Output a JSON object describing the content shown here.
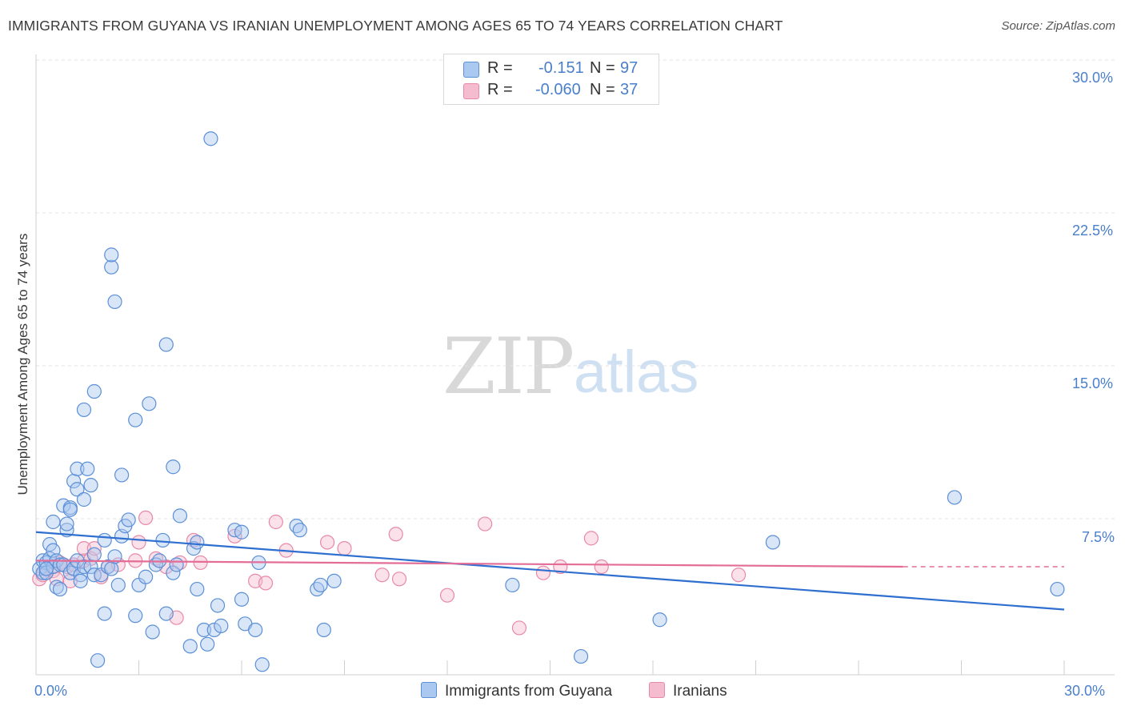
{
  "title": "IMMIGRANTS FROM GUYANA VS IRANIAN UNEMPLOYMENT AMONG AGES 65 TO 74 YEARS CORRELATION CHART",
  "source": "Source: ZipAtlas.com",
  "watermark": {
    "zip": "ZIP",
    "atlas": "atlas"
  },
  "colors": {
    "blue": "#5b8fd6",
    "blue_fill": "#aac8f0",
    "blue_line": "#2e6fcf",
    "pink": "#e889a8",
    "pink_fill": "#f5bcd0",
    "pink_line": "#e36d97",
    "grid": "#e3e3e3",
    "tick_text": "#4a7fcb"
  },
  "legend": {
    "series1": {
      "r_label": "R =",
      "r_value": "-0.151",
      "n_label": "N =",
      "n_value": "97"
    },
    "series2": {
      "r_label": "R =",
      "r_value": "-0.060",
      "n_label": "N =",
      "n_value": "37"
    }
  },
  "chart_data": {
    "type": "scatter",
    "title": "IMMIGRANTS FROM GUYANA VS IRANIAN UNEMPLOYMENT AMONG AGES 65 TO 74 YEARS CORRELATION CHART",
    "xlabel": "",
    "ylabel": "Unemployment Among Ages 65 to 74 years",
    "xlim": [
      0,
      30
    ],
    "ylim": [
      0,
      30
    ],
    "x_tick_labels": [
      "0.0%",
      "30.0%"
    ],
    "y_ticks": [
      7.5,
      15.0,
      22.5,
      30.0
    ],
    "y_tick_labels": [
      "7.5%",
      "15.0%",
      "22.5%",
      "30.0%"
    ],
    "grid": true,
    "series": [
      {
        "name": "Immigrants from Guyana",
        "R": -0.151,
        "N": 97,
        "trend": {
          "x": [
            0,
            30
          ],
          "y": [
            7.0,
            3.2
          ]
        },
        "points": [
          [
            0.1,
            5.2
          ],
          [
            0.2,
            5.6
          ],
          [
            0.2,
            5.0
          ],
          [
            0.3,
            5.5
          ],
          [
            0.3,
            5.0
          ],
          [
            0.4,
            5.7
          ],
          [
            0.4,
            6.4
          ],
          [
            0.5,
            5.3
          ],
          [
            0.5,
            6.1
          ],
          [
            0.5,
            7.5
          ],
          [
            0.6,
            4.3
          ],
          [
            0.6,
            5.6
          ],
          [
            0.7,
            5.4
          ],
          [
            0.7,
            4.2
          ],
          [
            0.8,
            5.4
          ],
          [
            0.8,
            8.3
          ],
          [
            0.9,
            7.1
          ],
          [
            0.9,
            7.4
          ],
          [
            1.0,
            8.2
          ],
          [
            1.0,
            8.1
          ],
          [
            1.0,
            5.0
          ],
          [
            1.1,
            9.5
          ],
          [
            1.1,
            5.2
          ],
          [
            1.2,
            5.6
          ],
          [
            1.2,
            10.1
          ],
          [
            1.2,
            9.1
          ],
          [
            1.3,
            4.9
          ],
          [
            1.3,
            4.6
          ],
          [
            1.4,
            5.3
          ],
          [
            1.4,
            8.6
          ],
          [
            1.4,
            13.0
          ],
          [
            1.5,
            10.1
          ],
          [
            1.6,
            9.3
          ],
          [
            1.6,
            5.3
          ],
          [
            1.7,
            13.9
          ],
          [
            1.7,
            4.9
          ],
          [
            1.7,
            5.9
          ],
          [
            1.8,
            0.7
          ],
          [
            1.9,
            4.9
          ],
          [
            2.0,
            3.0
          ],
          [
            2.0,
            6.6
          ],
          [
            2.1,
            5.3
          ],
          [
            2.2,
            20.0
          ],
          [
            2.2,
            20.6
          ],
          [
            2.2,
            5.2
          ],
          [
            2.3,
            18.3
          ],
          [
            2.3,
            5.8
          ],
          [
            2.4,
            4.4
          ],
          [
            2.5,
            9.8
          ],
          [
            2.5,
            6.8
          ],
          [
            2.6,
            7.3
          ],
          [
            2.7,
            7.6
          ],
          [
            2.9,
            12.5
          ],
          [
            2.9,
            2.9
          ],
          [
            3.0,
            4.4
          ],
          [
            3.2,
            4.8
          ],
          [
            3.3,
            13.3
          ],
          [
            3.4,
            2.1
          ],
          [
            3.5,
            5.4
          ],
          [
            3.6,
            5.6
          ],
          [
            3.7,
            6.6
          ],
          [
            3.8,
            16.2
          ],
          [
            3.8,
            3.0
          ],
          [
            4.0,
            10.2
          ],
          [
            4.0,
            5.0
          ],
          [
            4.1,
            5.4
          ],
          [
            4.2,
            7.8
          ],
          [
            4.5,
            1.4
          ],
          [
            4.6,
            6.2
          ],
          [
            4.7,
            6.5
          ],
          [
            4.7,
            4.2
          ],
          [
            4.9,
            2.2
          ],
          [
            5.0,
            1.5
          ],
          [
            5.1,
            26.3
          ],
          [
            5.2,
            2.2
          ],
          [
            5.3,
            3.4
          ],
          [
            5.4,
            2.4
          ],
          [
            5.8,
            7.1
          ],
          [
            6.0,
            7.0
          ],
          [
            6.0,
            3.7
          ],
          [
            6.1,
            2.5
          ],
          [
            6.4,
            2.2
          ],
          [
            6.5,
            5.5
          ],
          [
            6.6,
            0.5
          ],
          [
            7.6,
            7.3
          ],
          [
            7.7,
            7.1
          ],
          [
            8.2,
            4.2
          ],
          [
            8.3,
            4.4
          ],
          [
            8.4,
            2.2
          ],
          [
            8.7,
            4.6
          ],
          [
            13.9,
            4.4
          ],
          [
            15.9,
            0.9
          ],
          [
            18.2,
            2.7
          ],
          [
            21.5,
            6.5
          ],
          [
            26.8,
            8.7
          ],
          [
            29.8,
            4.2
          ],
          [
            0.3,
            5.2
          ]
        ]
      },
      {
        "name": "Iranians",
        "R": -0.06,
        "N": 37,
        "trend": {
          "x": [
            0,
            25.3
          ],
          "y": [
            5.6,
            5.3
          ]
        },
        "trend_dashed": {
          "x": [
            25.3,
            30
          ],
          "y": [
            5.3,
            5.3
          ]
        },
        "points": [
          [
            0.1,
            4.7
          ],
          [
            0.2,
            4.9
          ],
          [
            0.3,
            5.2
          ],
          [
            0.5,
            5.1
          ],
          [
            0.6,
            4.7
          ],
          [
            0.7,
            5.5
          ],
          [
            0.9,
            5.3
          ],
          [
            1.0,
            4.6
          ],
          [
            1.1,
            5.4
          ],
          [
            1.4,
            5.6
          ],
          [
            1.4,
            6.2
          ],
          [
            1.6,
            5.7
          ],
          [
            1.7,
            6.2
          ],
          [
            1.9,
            4.8
          ],
          [
            2.1,
            5.3
          ],
          [
            2.4,
            5.4
          ],
          [
            2.9,
            5.6
          ],
          [
            3.0,
            6.5
          ],
          [
            3.2,
            7.7
          ],
          [
            3.5,
            5.7
          ],
          [
            3.8,
            5.3
          ],
          [
            4.1,
            2.8
          ],
          [
            4.2,
            5.5
          ],
          [
            4.6,
            6.6
          ],
          [
            4.8,
            5.5
          ],
          [
            5.8,
            6.8
          ],
          [
            6.4,
            4.6
          ],
          [
            6.7,
            4.5
          ],
          [
            7.0,
            7.5
          ],
          [
            7.3,
            6.1
          ],
          [
            8.5,
            6.5
          ],
          [
            9.0,
            6.2
          ],
          [
            10.1,
            4.9
          ],
          [
            10.6,
            4.7
          ],
          [
            12.0,
            3.9
          ],
          [
            13.1,
            7.4
          ],
          [
            14.1,
            2.3
          ]
        ]
      }
    ],
    "extra_iranian_points": [
      [
        14.8,
        5.0
      ],
      [
        15.3,
        5.3
      ],
      [
        16.2,
        6.7
      ],
      [
        16.5,
        5.3
      ],
      [
        20.5,
        4.9
      ],
      [
        10.5,
        6.9
      ]
    ]
  },
  "bottom_legend": {
    "series1": "Immigrants from Guyana",
    "series2": "Iranians"
  }
}
